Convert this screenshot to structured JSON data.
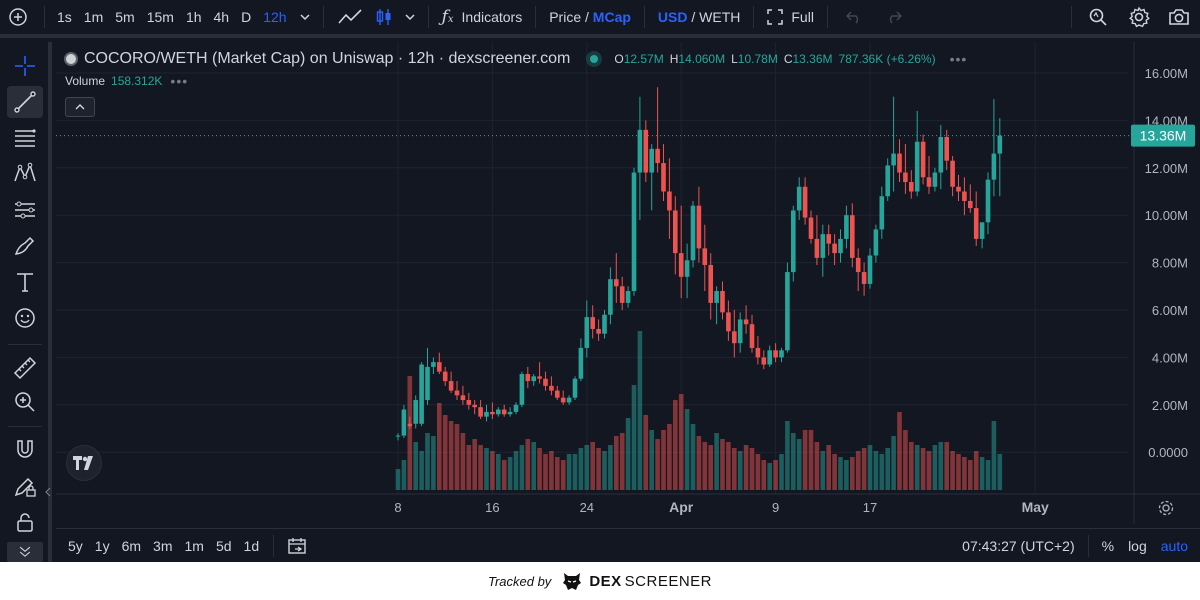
{
  "toolbar": {
    "timeframes": [
      "1s",
      "1m",
      "5m",
      "15m",
      "1h",
      "4h",
      "D",
      "12h"
    ],
    "active_timeframe": "12h",
    "indicators_label": "Indicators",
    "price_label": "Price",
    "price_sep": " / ",
    "mcap_label": "MCap",
    "usd_label": "USD",
    "weth_label": " / WETH",
    "full_label": "Full"
  },
  "legend": {
    "title": "COCORO/WETH (Market Cap) on Uniswap · 12h · dexscreener.com",
    "ohlc": {
      "o_label": "O",
      "o": "12.57M",
      "h_label": "H",
      "h": "14.060M",
      "l_label": "L",
      "l": "10.78M",
      "c_label": "C",
      "c": "13.36M",
      "change": "787.36K (+6.26%)"
    },
    "volume_label": "Volume",
    "volume_value": "158.312K"
  },
  "colors": {
    "up": "#26a69a",
    "down": "#ef5350",
    "background": "#131722",
    "grid": "#1f2330",
    "accent": "#2962ff"
  },
  "bottombar": {
    "ranges": [
      "5y",
      "1y",
      "6m",
      "3m",
      "1m",
      "5d",
      "1d"
    ],
    "time": "07:43:27 (UTC+2)",
    "percent_label": "%",
    "log_label": "log",
    "auto_label": "auto"
  },
  "footer": {
    "tracked_by": "Tracked by",
    "brand_dex": "DEX",
    "brand_screener": "SCREENER"
  },
  "chart_data": {
    "type": "candlestick",
    "title": "COCORO/WETH (Market Cap) on Uniswap · 12h · dexscreener.com",
    "y_ticks": [
      "16.00M",
      "14.00M",
      "12.00M",
      "10.00M",
      "8.00M",
      "6.00M",
      "4.00M",
      "2.00M",
      "0.0000"
    ],
    "y_tick_values": [
      16,
      14,
      12,
      10,
      8,
      6,
      4,
      2,
      0
    ],
    "y_unit": "M",
    "ylim": [
      0,
      16.6
    ],
    "x_tick_labels": [
      "8",
      "16",
      "24",
      "Apr",
      "9",
      "17",
      "May"
    ],
    "x_tick_index": [
      0,
      16,
      32,
      48,
      64,
      80,
      108
    ],
    "current_price_label": "13.36M",
    "current_price": 13.36,
    "grid": true,
    "candles": [
      [
        0.7,
        0.8,
        0.5,
        0.7
      ],
      [
        0.7,
        2.0,
        0.6,
        1.8
      ],
      [
        1.2,
        1.5,
        1.0,
        1.1
      ],
      [
        1.2,
        2.4,
        1.0,
        2.2
      ],
      [
        1.2,
        3.8,
        1.1,
        3.7
      ],
      [
        2.2,
        4.4,
        2.0,
        3.6
      ],
      [
        3.6,
        4.0,
        3.3,
        3.8
      ],
      [
        3.8,
        4.2,
        3.3,
        3.4
      ],
      [
        3.4,
        3.6,
        2.8,
        3.0
      ],
      [
        3.0,
        3.4,
        2.5,
        2.6
      ],
      [
        2.6,
        3.0,
        2.2,
        2.4
      ],
      [
        2.4,
        2.8,
        2.0,
        2.2
      ],
      [
        2.2,
        2.5,
        1.8,
        2.0
      ],
      [
        2.0,
        2.2,
        1.6,
        1.9
      ],
      [
        1.9,
        2.2,
        1.4,
        1.5
      ],
      [
        1.5,
        2.0,
        1.3,
        1.7
      ],
      [
        1.7,
        2.1,
        1.4,
        1.6
      ],
      [
        1.6,
        1.9,
        1.5,
        1.8
      ],
      [
        1.8,
        2.0,
        1.5,
        1.6
      ],
      [
        1.6,
        1.9,
        1.5,
        1.7
      ],
      [
        1.7,
        2.1,
        1.6,
        2.0
      ],
      [
        2.0,
        3.4,
        1.9,
        3.3
      ],
      [
        3.3,
        3.6,
        2.7,
        3.0
      ],
      [
        3.0,
        3.3,
        2.8,
        3.2
      ],
      [
        3.2,
        3.8,
        2.9,
        3.1
      ],
      [
        3.1,
        3.4,
        2.6,
        2.8
      ],
      [
        2.8,
        3.2,
        2.4,
        2.6
      ],
      [
        2.6,
        2.8,
        2.2,
        2.3
      ],
      [
        2.3,
        2.6,
        2.0,
        2.1
      ],
      [
        2.1,
        2.4,
        2.0,
        2.3
      ],
      [
        2.3,
        3.2,
        2.2,
        3.1
      ],
      [
        3.1,
        4.8,
        3.0,
        4.4
      ],
      [
        4.4,
        6.4,
        4.0,
        5.7
      ],
      [
        5.7,
        6.2,
        4.8,
        5.2
      ],
      [
        5.2,
        5.6,
        4.7,
        5.0
      ],
      [
        5.0,
        6.0,
        4.8,
        5.8
      ],
      [
        5.8,
        7.8,
        5.4,
        7.3
      ],
      [
        7.3,
        8.4,
        6.3,
        7.0
      ],
      [
        7.0,
        7.4,
        6.0,
        6.3
      ],
      [
        6.3,
        7.0,
        6.1,
        6.8
      ],
      [
        6.8,
        12.0,
        6.6,
        11.8
      ],
      [
        11.8,
        15.0,
        9.8,
        13.6
      ],
      [
        13.6,
        14.0,
        11.4,
        11.8
      ],
      [
        11.8,
        13.0,
        10.2,
        12.8
      ],
      [
        12.8,
        15.4,
        11.8,
        12.2
      ],
      [
        12.2,
        13.0,
        10.6,
        11.0
      ],
      [
        11.0,
        12.4,
        9.0,
        10.2
      ],
      [
        10.2,
        10.8,
        7.5,
        8.4
      ],
      [
        8.4,
        10.4,
        6.5,
        7.4
      ],
      [
        7.4,
        8.8,
        6.5,
        8.1
      ],
      [
        8.1,
        10.6,
        7.8,
        10.4
      ],
      [
        10.4,
        11.2,
        8.0,
        8.6
      ],
      [
        8.6,
        9.6,
        6.8,
        7.9
      ],
      [
        7.9,
        8.4,
        5.6,
        6.3
      ],
      [
        6.3,
        7.0,
        5.4,
        6.8
      ],
      [
        6.8,
        7.2,
        5.6,
        5.9
      ],
      [
        5.9,
        6.4,
        4.7,
        5.1
      ],
      [
        5.1,
        6.0,
        4.0,
        4.6
      ],
      [
        4.6,
        5.9,
        4.2,
        5.6
      ],
      [
        5.6,
        6.2,
        5.0,
        5.4
      ],
      [
        5.4,
        5.8,
        4.2,
        4.4
      ],
      [
        4.4,
        4.9,
        3.7,
        4.0
      ],
      [
        4.0,
        4.3,
        3.5,
        3.7
      ],
      [
        3.7,
        4.5,
        3.6,
        4.3
      ],
      [
        4.3,
        4.6,
        3.8,
        4.0
      ],
      [
        4.0,
        4.4,
        3.8,
        4.3
      ],
      [
        4.3,
        8.0,
        4.2,
        7.6
      ],
      [
        7.6,
        10.4,
        7.2,
        10.2
      ],
      [
        10.2,
        11.6,
        9.8,
        11.2
      ],
      [
        11.2,
        11.6,
        9.6,
        9.9
      ],
      [
        9.9,
        10.2,
        8.8,
        9.0
      ],
      [
        9.0,
        10.0,
        7.9,
        8.2
      ],
      [
        8.2,
        9.6,
        7.4,
        9.2
      ],
      [
        9.2,
        9.6,
        8.3,
        8.8
      ],
      [
        8.8,
        9.2,
        7.9,
        8.4
      ],
      [
        8.4,
        9.4,
        8.0,
        9.0
      ],
      [
        9.0,
        10.4,
        8.6,
        10.0
      ],
      [
        10.0,
        10.5,
        7.8,
        8.2
      ],
      [
        8.2,
        8.6,
        6.8,
        7.6
      ],
      [
        7.6,
        8.0,
        6.6,
        7.1
      ],
      [
        7.1,
        8.6,
        6.9,
        8.3
      ],
      [
        8.3,
        9.6,
        8.0,
        9.4
      ],
      [
        9.4,
        11.2,
        9.0,
        10.8
      ],
      [
        10.8,
        12.4,
        10.6,
        12.1
      ],
      [
        12.1,
        15.0,
        11.0,
        12.6
      ],
      [
        12.6,
        13.2,
        11.4,
        11.8
      ],
      [
        11.8,
        13.0,
        10.9,
        11.4
      ],
      [
        11.4,
        11.9,
        10.7,
        11.0
      ],
      [
        11.0,
        14.4,
        10.8,
        13.1
      ],
      [
        13.1,
        13.4,
        11.3,
        11.6
      ],
      [
        11.6,
        12.5,
        10.9,
        11.2
      ],
      [
        11.2,
        12.0,
        11.0,
        11.8
      ],
      [
        11.8,
        13.8,
        11.1,
        13.3
      ],
      [
        13.3,
        13.6,
        11.9,
        12.3
      ],
      [
        12.3,
        12.5,
        10.8,
        11.2
      ],
      [
        11.2,
        11.7,
        10.6,
        11.0
      ],
      [
        11.0,
        11.6,
        10.0,
        10.6
      ],
      [
        10.6,
        11.3,
        10.1,
        10.3
      ],
      [
        10.3,
        11.0,
        8.7,
        9.0
      ],
      [
        9.0,
        9.6,
        8.6,
        9.7
      ],
      [
        9.7,
        11.8,
        9.2,
        11.5
      ],
      [
        11.5,
        14.9,
        10.8,
        12.6
      ],
      [
        12.6,
        14.1,
        10.8,
        13.36
      ]
    ],
    "volume": [
      0.7,
      1.0,
      3.8,
      1.6,
      1.3,
      1.9,
      1.8,
      2.9,
      2.5,
      2.3,
      2.2,
      1.9,
      1.5,
      1.7,
      1.5,
      1.4,
      1.3,
      1.2,
      1.0,
      1.1,
      1.3,
      1.5,
      1.7,
      1.6,
      1.4,
      1.2,
      1.3,
      1.1,
      1.0,
      1.2,
      1.2,
      1.4,
      1.5,
      1.6,
      1.4,
      1.3,
      1.5,
      1.8,
      1.9,
      2.4,
      3.5,
      5.3,
      2.5,
      2.0,
      1.7,
      2.0,
      2.2,
      3.0,
      3.2,
      2.7,
      2.2,
      1.8,
      1.6,
      1.5,
      1.9,
      1.7,
      1.6,
      1.4,
      1.3,
      1.5,
      1.4,
      1.2,
      1.0,
      0.9,
      1.0,
      1.2,
      2.3,
      1.9,
      1.7,
      2.0,
      2.0,
      1.6,
      1.3,
      1.5,
      1.2,
      1.1,
      1.0,
      1.1,
      1.3,
      1.4,
      1.5,
      1.3,
      1.2,
      1.4,
      1.8,
      2.6,
      2.0,
      1.6,
      1.5,
      1.4,
      1.3,
      1.5,
      1.6,
      1.6,
      1.3,
      1.2,
      1.1,
      1.0,
      1.3,
      1.1,
      1.0,
      2.3,
      1.2
    ]
  }
}
